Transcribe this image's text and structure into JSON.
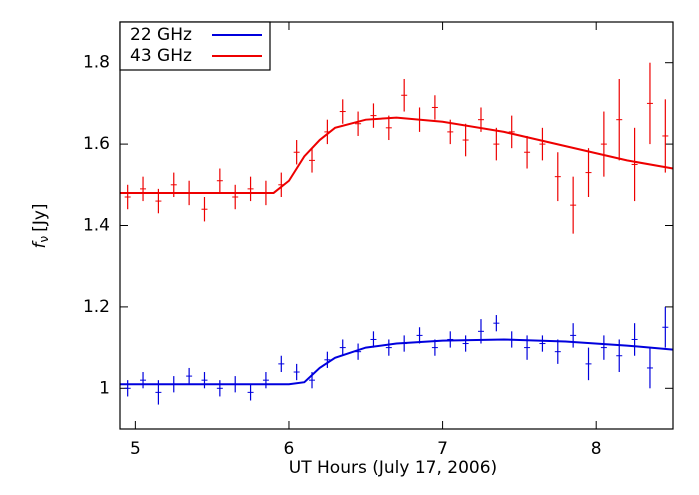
{
  "chart_data": {
    "type": "errorbar",
    "xlabel": "UT Hours (July 17, 2006)",
    "ylabel": "f",
    "ylabel_sub": "ν",
    "ylabel_unit": "[Jy]",
    "xlim": [
      4.9,
      8.5
    ],
    "xticks": [
      5,
      6,
      7,
      8
    ],
    "ylim": [
      0.9,
      1.9
    ],
    "yticks": [
      1,
      1.2,
      1.4,
      1.6,
      1.8
    ],
    "legend": "upper left",
    "x": [
      4.95,
      5.05,
      5.15,
      5.25,
      5.35,
      5.45,
      5.55,
      5.65,
      5.75,
      5.85,
      5.95,
      6.05,
      6.15,
      6.25,
      6.35,
      6.45,
      6.55,
      6.65,
      6.75,
      6.85,
      6.95,
      7.05,
      7.15,
      7.25,
      7.35,
      7.45,
      7.55,
      7.65,
      7.75,
      7.85,
      7.95,
      8.05,
      8.15,
      8.25,
      8.35,
      8.45
    ],
    "model_x": [
      4.9,
      5.5,
      5.9,
      6.0,
      6.1,
      6.2,
      6.3,
      6.5,
      6.7,
      7.0,
      7.4,
      7.8,
      8.2,
      8.5
    ],
    "series": [
      {
        "name": "22 GHz",
        "color": "#0000dd",
        "values": [
          1.0,
          1.02,
          0.99,
          1.01,
          1.03,
          1.02,
          1.0,
          1.01,
          0.99,
          1.02,
          1.06,
          1.04,
          1.02,
          1.07,
          1.1,
          1.09,
          1.12,
          1.1,
          1.11,
          1.13,
          1.1,
          1.12,
          1.11,
          1.14,
          1.16,
          1.12,
          1.1,
          1.11,
          1.09,
          1.13,
          1.06,
          1.1,
          1.08,
          1.12,
          1.05,
          1.15
        ],
        "errors": [
          0.02,
          0.02,
          0.03,
          0.02,
          0.02,
          0.02,
          0.02,
          0.02,
          0.02,
          0.02,
          0.02,
          0.02,
          0.02,
          0.02,
          0.02,
          0.02,
          0.02,
          0.02,
          0.02,
          0.02,
          0.02,
          0.02,
          0.02,
          0.03,
          0.02,
          0.02,
          0.03,
          0.02,
          0.03,
          0.03,
          0.04,
          0.03,
          0.04,
          0.04,
          0.05,
          0.05
        ],
        "model": [
          1.01,
          1.01,
          1.01,
          1.01,
          1.015,
          1.05,
          1.075,
          1.1,
          1.11,
          1.117,
          1.12,
          1.115,
          1.105,
          1.095
        ]
      },
      {
        "name": "43 GHz",
        "color": "#ee0000",
        "values": [
          1.47,
          1.49,
          1.46,
          1.5,
          1.48,
          1.44,
          1.51,
          1.47,
          1.49,
          1.48,
          1.5,
          1.58,
          1.56,
          1.63,
          1.68,
          1.65,
          1.67,
          1.64,
          1.72,
          1.66,
          1.69,
          1.63,
          1.61,
          1.66,
          1.6,
          1.63,
          1.58,
          1.6,
          1.52,
          1.45,
          1.53,
          1.6,
          1.66,
          1.55,
          1.7,
          1.62
        ],
        "errors": [
          0.03,
          0.03,
          0.03,
          0.03,
          0.03,
          0.03,
          0.03,
          0.03,
          0.03,
          0.03,
          0.03,
          0.03,
          0.03,
          0.03,
          0.03,
          0.03,
          0.03,
          0.03,
          0.04,
          0.03,
          0.03,
          0.03,
          0.04,
          0.03,
          0.04,
          0.04,
          0.04,
          0.04,
          0.06,
          0.07,
          0.06,
          0.08,
          0.1,
          0.09,
          0.1,
          0.09
        ],
        "model": [
          1.48,
          1.48,
          1.48,
          1.51,
          1.57,
          1.61,
          1.64,
          1.66,
          1.665,
          1.655,
          1.63,
          1.595,
          1.56,
          1.54
        ]
      }
    ]
  }
}
